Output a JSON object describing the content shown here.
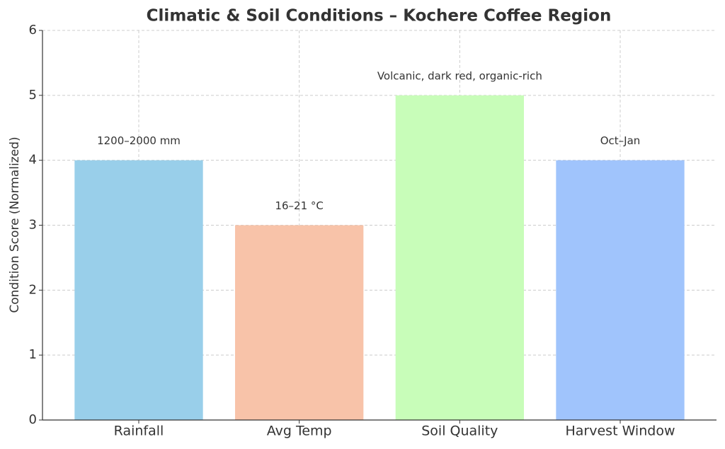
{
  "chart_data": {
    "type": "bar",
    "title": "Climatic & Soil Conditions – Kochere Coffee Region",
    "y_label": "Condition Score (Normalized)",
    "categories": [
      "Rainfall",
      "Avg Temp",
      "Soil Quality",
      "Harvest Window"
    ],
    "values": [
      4,
      3,
      5,
      4
    ],
    "annotations": [
      "1200–2000 mm",
      "16–21 °C",
      "Volcanic, dark red, organic-rich",
      "Oct–Jan"
    ],
    "colors": [
      "#99cfea",
      "#f8c3a9",
      "#c8fdb9",
      "#a0c4fc"
    ],
    "ylim": [
      0,
      6
    ],
    "yticks": [
      0,
      1,
      2,
      3,
      4,
      5,
      6
    ],
    "grid": true
  }
}
